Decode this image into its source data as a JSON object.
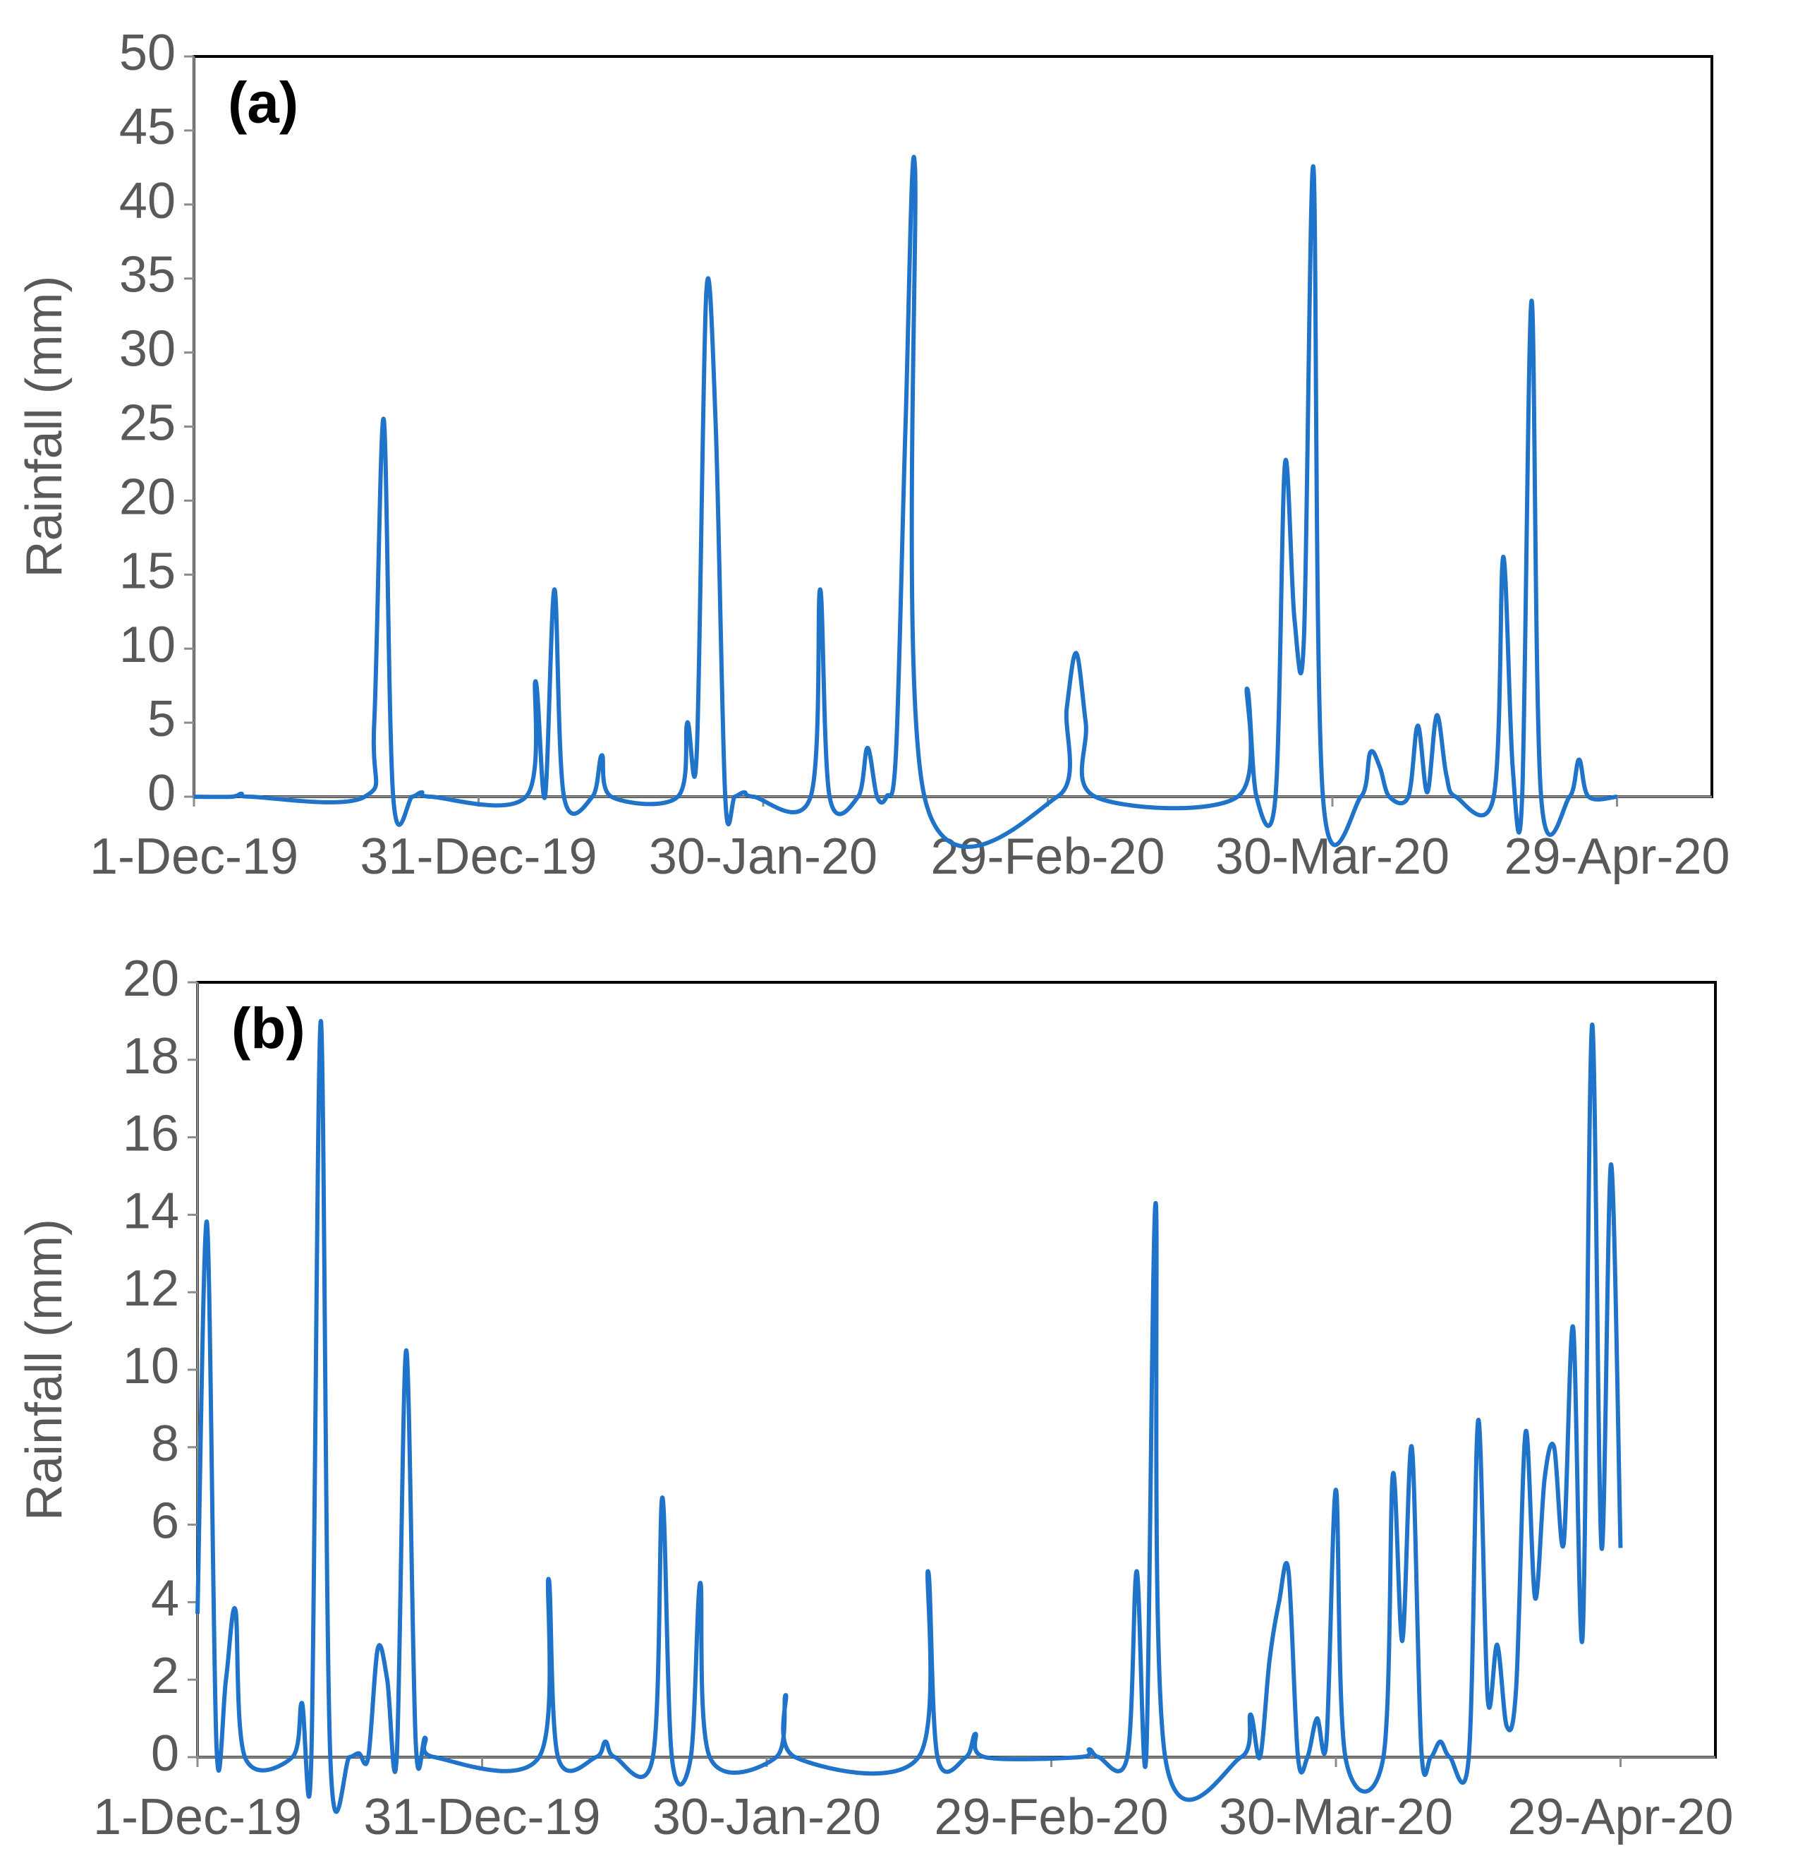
{
  "chart_data": [
    {
      "type": "line",
      "title": "(a)",
      "y_label": "Rainfall (mm)",
      "color": "#1f73c9",
      "x": [
        "1-Dec-19",
        "5-Dec-19",
        "6-Dec-19",
        "7-Dec-19",
        "19-Dec-19",
        "20-Dec-19",
        "21-Dec-19",
        "22-Dec-19",
        "24-Dec-19",
        "25-Dec-19",
        "26-Dec-19",
        "5-Jan-20",
        "6-Jan-20",
        "7-Jan-20",
        "8-Jan-20",
        "9-Jan-20",
        "12-Jan-20",
        "13-Jan-20",
        "14-Jan-20",
        "21-Jan-20",
        "22-Jan-20",
        "23-Jan-20",
        "24-Jan-20",
        "25-Jan-20",
        "26-Jan-20",
        "27-Jan-20",
        "28-Jan-20",
        "29-Jan-20",
        "4-Feb-20",
        "5-Feb-20",
        "6-Feb-20",
        "9-Feb-20",
        "10-Feb-20",
        "11-Feb-20",
        "12-Feb-20",
        "13-Feb-20",
        "14-Feb-20",
        "15-Feb-20",
        "16-Feb-20",
        "1-Mar-20",
        "2-Mar-20",
        "3-Mar-20",
        "4-Mar-20",
        "5-Mar-20",
        "20-Mar-20",
        "21-Mar-20",
        "22-Mar-20",
        "24-Mar-20",
        "25-Mar-20",
        "26-Mar-20",
        "27-Mar-20",
        "28-Mar-20",
        "29-Mar-20",
        "2-Apr-20",
        "3-Apr-20",
        "4-Apr-20",
        "5-Apr-20",
        "7-Apr-20",
        "8-Apr-20",
        "9-Apr-20",
        "10-Apr-20",
        "11-Apr-20",
        "12-Apr-20",
        "16-Apr-20",
        "17-Apr-20",
        "18-Apr-20",
        "19-Apr-20",
        "20-Apr-20",
        "21-Apr-20",
        "24-Apr-20",
        "25-Apr-20",
        "26-Apr-20",
        "29-Apr-20"
      ],
      "values": [
        0,
        0,
        0.2,
        0,
        0,
        5,
        25.5,
        0,
        0,
        0.3,
        0,
        0,
        7.8,
        0,
        14,
        0,
        0,
        2.8,
        0,
        0,
        5,
        3,
        34,
        25,
        0,
        0,
        0.3,
        0,
        0,
        14,
        0,
        0,
        3.3,
        0,
        0,
        3,
        25,
        42.5,
        0,
        0,
        6,
        9.7,
        5,
        0,
        0,
        7.3,
        0,
        0,
        22.5,
        12,
        10.7,
        42.5,
        0,
        0,
        3,
        2,
        0,
        0,
        4.8,
        0.3,
        5.5,
        1.5,
        0,
        0,
        16.2,
        2,
        0,
        33.5,
        0,
        0,
        2.5,
        0,
        0
      ],
      "xlim": [
        "1-Dec-19",
        "9-May-20"
      ],
      "xticks": [
        "1-Dec-19",
        "31-Dec-19",
        "30-Jan-20",
        "29-Feb-20",
        "30-Mar-20",
        "29-Apr-20"
      ],
      "ylim": [
        0,
        50
      ],
      "yticks": [
        0,
        5,
        10,
        15,
        20,
        25,
        30,
        35,
        40,
        45,
        50
      ]
    },
    {
      "type": "line",
      "title": "(b)",
      "y_label": "Rainfall (mm)",
      "color": "#1f73c9",
      "x": [
        "1-Dec-19",
        "2-Dec-19",
        "3-Dec-19",
        "4-Dec-19",
        "5-Dec-19",
        "6-Dec-19",
        "11-Dec-19",
        "12-Dec-19",
        "13-Dec-19",
        "14-Dec-19",
        "15-Dec-19",
        "17-Dec-19",
        "18-Dec-19",
        "19-Dec-19",
        "20-Dec-19",
        "21-Dec-19",
        "22-Dec-19",
        "23-Dec-19",
        "24-Dec-19",
        "25-Dec-19",
        "26-Dec-19",
        "6-Jan-20",
        "7-Jan-20",
        "8-Jan-20",
        "12-Jan-20",
        "13-Jan-20",
        "14-Jan-20",
        "18-Jan-20",
        "19-Jan-20",
        "20-Jan-20",
        "22-Jan-20",
        "23-Jan-20",
        "24-Jan-20",
        "31-Jan-20",
        "1-Feb-20",
        "2-Feb-20",
        "15-Feb-20",
        "16-Feb-20",
        "17-Feb-20",
        "20-Feb-20",
        "21-Feb-20",
        "22-Feb-20",
        "3-Mar-20",
        "4-Mar-20",
        "5-Mar-20",
        "8-Mar-20",
        "9-Mar-20",
        "10-Mar-20",
        "11-Mar-20",
        "12-Mar-20",
        "20-Mar-20",
        "21-Mar-20",
        "22-Mar-20",
        "23-Mar-20",
        "24-Mar-20",
        "25-Mar-20",
        "26-Mar-20",
        "27-Mar-20",
        "28-Mar-20",
        "29-Mar-20",
        "30-Mar-20",
        "31-Mar-20",
        "4-Apr-20",
        "5-Apr-20",
        "6-Apr-20",
        "7-Apr-20",
        "8-Apr-20",
        "9-Apr-20",
        "10-Apr-20",
        "11-Apr-20",
        "13-Apr-20",
        "14-Apr-20",
        "15-Apr-20",
        "16-Apr-20",
        "17-Apr-20",
        "18-Apr-20",
        "19-Apr-20",
        "20-Apr-20",
        "21-Apr-20",
        "22-Apr-20",
        "23-Apr-20",
        "24-Apr-20",
        "25-Apr-20",
        "26-Apr-20",
        "27-Apr-20",
        "28-Apr-20",
        "29-Apr-20"
      ],
      "values": [
        3.7,
        13.8,
        0.3,
        2,
        3.8,
        0,
        0,
        1.4,
        0,
        19,
        0,
        0,
        0.1,
        0,
        2.8,
        2,
        0,
        10.5,
        0.4,
        0.5,
        0,
        0,
        4.6,
        0,
        0,
        0.4,
        0,
        0,
        6.7,
        0,
        0,
        4.5,
        0,
        0,
        1.6,
        0,
        0,
        4.8,
        0,
        0,
        0.6,
        0,
        0,
        0.2,
        0,
        0,
        4.8,
        0,
        14.3,
        0,
        0,
        1.1,
        0,
        2.5,
        4,
        4.8,
        0,
        0,
        1,
        0.4,
        6.9,
        0,
        0,
        7.3,
        3,
        8,
        0.2,
        0,
        0.4,
        0,
        0,
        8.7,
        1.5,
        2.9,
        0.8,
        1.8,
        8.4,
        4.1,
        7.2,
        8,
        5.5,
        11.1,
        3.1,
        18.9,
        5.4,
        15.3,
        5.4
      ],
      "xlim": [
        "1-Dec-19",
        "9-May-20"
      ],
      "xticks": [
        "1-Dec-19",
        "31-Dec-19",
        "30-Jan-20",
        "29-Feb-20",
        "30-Mar-20",
        "29-Apr-20"
      ],
      "ylim": [
        0,
        20
      ],
      "yticks": [
        0,
        2,
        4,
        6,
        8,
        10,
        12,
        14,
        16,
        18,
        20
      ]
    }
  ]
}
